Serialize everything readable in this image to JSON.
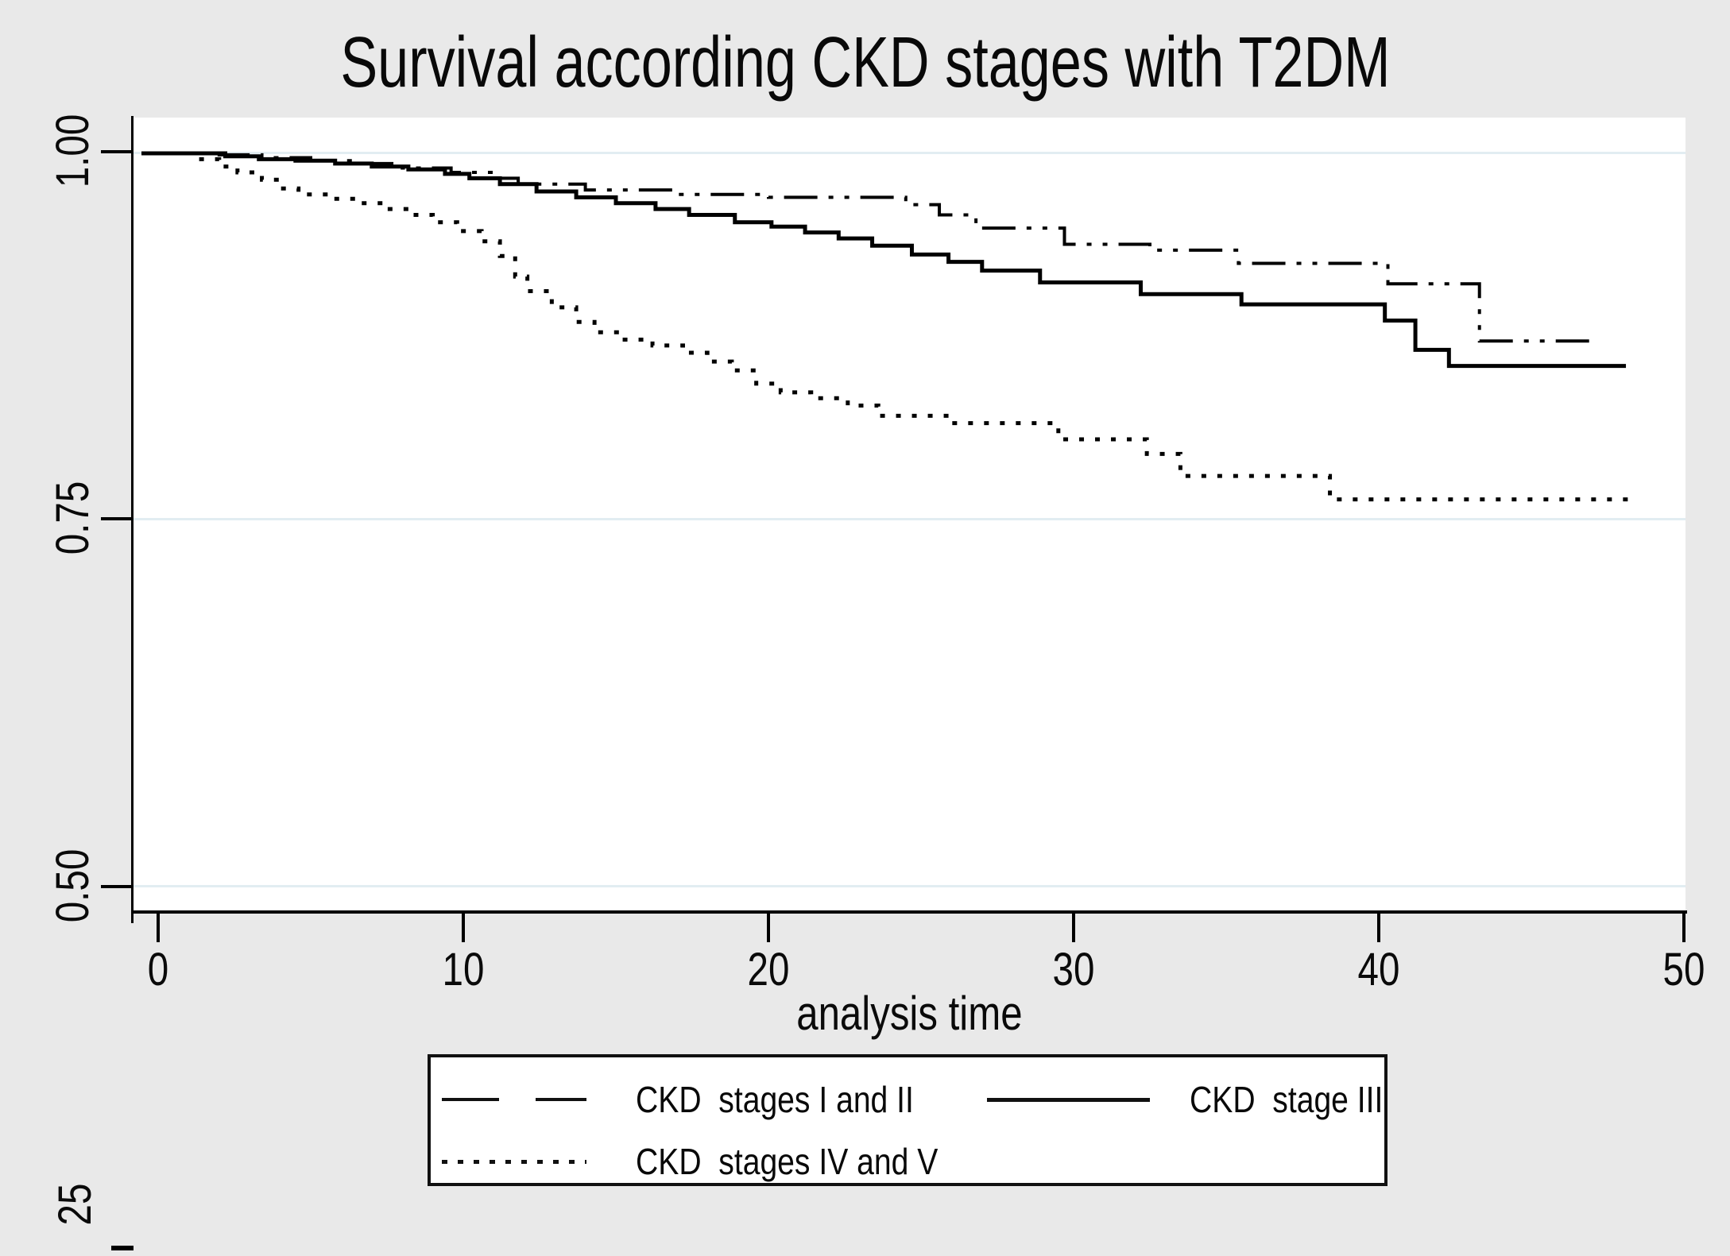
{
  "title": "Survival according CKD stages with T2DM",
  "colors": {
    "page_background": "#e9e9e9",
    "plot_background": "#ffffff",
    "gridline": "#e2edf2",
    "line_color": "#000000"
  },
  "x_axis": {
    "label": "analysis time",
    "tick_labels": [
      "0",
      "10",
      "20",
      "30",
      "40",
      "50"
    ],
    "tick_values": [
      0,
      10,
      20,
      30,
      40,
      50
    ]
  },
  "y_axis": {
    "tick_labels": [
      "1.00",
      "0.75",
      "0.50"
    ],
    "tick_values": [
      1.0,
      0.75,
      0.5
    ],
    "partial_bottom_label": "25"
  },
  "legend": {
    "items": [
      {
        "label": "CKD  stages I and II",
        "style": "dash"
      },
      {
        "label": "CKD  stage III",
        "style": "solid"
      },
      {
        "label": "CKD  stages IV and V",
        "style": "dot"
      }
    ]
  },
  "chart_data": {
    "type": "line",
    "subtype": "kaplan-meier-step",
    "title": "Survival according CKD stages with T2DM",
    "xlabel": "analysis time",
    "ylabel": "",
    "xlim": [
      0,
      50
    ],
    "ylim_visible_ticks": [
      0.5,
      1.0
    ],
    "grid": "horizontal",
    "legend_position": "below",
    "series": [
      {
        "name": "CKD  stages I and II",
        "style": "dash",
        "end_t": 47.2,
        "points": [
          [
            0,
            1.0
          ],
          [
            2.0,
            0.999
          ],
          [
            3.4,
            0.997
          ],
          [
            5.0,
            0.995
          ],
          [
            6.6,
            0.993
          ],
          [
            8.0,
            0.99
          ],
          [
            9.6,
            0.987
          ],
          [
            11.0,
            0.983
          ],
          [
            11.8,
            0.979
          ],
          [
            14.0,
            0.975
          ],
          [
            16.9,
            0.972
          ],
          [
            20.0,
            0.97
          ],
          [
            24.5,
            0.965
          ],
          [
            25.6,
            0.958
          ],
          [
            26.8,
            0.949
          ],
          [
            29.7,
            0.938
          ],
          [
            32.5,
            0.934
          ],
          [
            35.4,
            0.925
          ],
          [
            40.3,
            0.911
          ],
          [
            43.3,
            0.872
          ]
        ]
      },
      {
        "name": "CKD  stage III",
        "style": "solid",
        "end_t": 48.1,
        "points": [
          [
            0,
            1.0
          ],
          [
            2.2,
            0.998
          ],
          [
            3.3,
            0.996
          ],
          [
            4.5,
            0.995
          ],
          [
            5.8,
            0.993
          ],
          [
            7.0,
            0.991
          ],
          [
            8.2,
            0.989
          ],
          [
            9.4,
            0.986
          ],
          [
            10.2,
            0.983
          ],
          [
            11.2,
            0.979
          ],
          [
            12.4,
            0.974
          ],
          [
            13.7,
            0.97
          ],
          [
            15.0,
            0.966
          ],
          [
            16.3,
            0.962
          ],
          [
            17.4,
            0.958
          ],
          [
            18.9,
            0.953
          ],
          [
            20.1,
            0.95
          ],
          [
            21.2,
            0.946
          ],
          [
            22.3,
            0.942
          ],
          [
            23.4,
            0.937
          ],
          [
            24.7,
            0.931
          ],
          [
            25.9,
            0.926
          ],
          [
            27.0,
            0.92
          ],
          [
            28.9,
            0.912
          ],
          [
            32.2,
            0.904
          ],
          [
            35.5,
            0.897
          ],
          [
            40.2,
            0.886
          ],
          [
            41.2,
            0.866
          ],
          [
            42.3,
            0.855
          ]
        ]
      },
      {
        "name": "CKD  stages IV and V",
        "style": "dot",
        "end_t": 48.5,
        "points": [
          [
            0,
            1.0
          ],
          [
            1.2,
            0.996
          ],
          [
            2.0,
            0.991
          ],
          [
            2.6,
            0.987
          ],
          [
            3.4,
            0.982
          ],
          [
            4.0,
            0.976
          ],
          [
            4.6,
            0.972
          ],
          [
            5.6,
            0.969
          ],
          [
            6.6,
            0.966
          ],
          [
            7.4,
            0.962
          ],
          [
            8.2,
            0.958
          ],
          [
            9.0,
            0.953
          ],
          [
            9.8,
            0.947
          ],
          [
            10.6,
            0.94
          ],
          [
            11.2,
            0.93
          ],
          [
            11.7,
            0.916
          ],
          [
            12.1,
            0.906
          ],
          [
            12.9,
            0.895
          ],
          [
            13.7,
            0.885
          ],
          [
            14.3,
            0.878
          ],
          [
            15.2,
            0.873
          ],
          [
            16.2,
            0.869
          ],
          [
            17.2,
            0.864
          ],
          [
            18.0,
            0.858
          ],
          [
            18.8,
            0.852
          ],
          [
            19.6,
            0.843
          ],
          [
            20.4,
            0.837
          ],
          [
            21.4,
            0.833
          ],
          [
            22.6,
            0.828
          ],
          [
            23.6,
            0.821
          ],
          [
            26.0,
            0.816
          ],
          [
            29.5,
            0.805
          ],
          [
            32.4,
            0.795
          ],
          [
            33.5,
            0.78
          ],
          [
            38.4,
            0.764
          ]
        ]
      }
    ]
  }
}
